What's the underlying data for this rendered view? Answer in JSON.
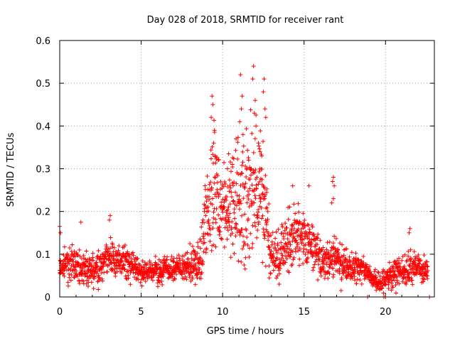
{
  "chart_data": {
    "type": "scatter",
    "title": "Day 028 of 2018, SRMTID for receiver rant",
    "xlabel": "GPS time / hours",
    "ylabel": "SRMTID / TECUs",
    "xlim": [
      0,
      23.0
    ],
    "ylim": [
      0,
      0.6
    ],
    "xticks": [
      0,
      5,
      10,
      15,
      20
    ],
    "xtick_labels": [
      "0",
      "5",
      "10",
      "15",
      "20"
    ],
    "yticks": [
      0,
      0.1,
      0.2,
      0.3,
      0.4,
      0.5,
      0.6
    ],
    "ytick_labels": [
      "0",
      "0.1",
      "0.2",
      "0.3",
      "0.4",
      "0.5",
      "0.6"
    ],
    "grid": true,
    "marker": "+",
    "color": "#ff0000",
    "profile": {
      "x": [
        0,
        1,
        2,
        3,
        4,
        5,
        6,
        7,
        8,
        8.6,
        9.0,
        9.5,
        10,
        10.5,
        11,
        11.5,
        12,
        12.5,
        13,
        13.5,
        14,
        14.5,
        15,
        15.5,
        16,
        16.5,
        17,
        17.5,
        18,
        18.5,
        19,
        19.5,
        20,
        20.5,
        21,
        21.5,
        22,
        22.6
      ],
      "y": [
        0.07,
        0.075,
        0.06,
        0.09,
        0.08,
        0.06,
        0.06,
        0.07,
        0.07,
        0.08,
        0.2,
        0.25,
        0.2,
        0.2,
        0.22,
        0.23,
        0.25,
        0.24,
        0.1,
        0.09,
        0.14,
        0.15,
        0.13,
        0.12,
        0.09,
        0.08,
        0.1,
        0.08,
        0.07,
        0.07,
        0.05,
        0.035,
        0.04,
        0.05,
        0.06,
        0.07,
        0.07,
        0.06
      ],
      "spread": [
        0.02,
        0.03,
        0.025,
        0.03,
        0.025,
        0.02,
        0.02,
        0.02,
        0.025,
        0.04,
        0.08,
        0.1,
        0.08,
        0.08,
        0.1,
        0.12,
        0.1,
        0.08,
        0.04,
        0.04,
        0.05,
        0.05,
        0.04,
        0.04,
        0.03,
        0.03,
        0.04,
        0.03,
        0.025,
        0.02,
        0.015,
        0.015,
        0.02,
        0.025,
        0.025,
        0.025,
        0.02,
        0.02
      ],
      "points_per_hour": 90
    },
    "peaks": [
      {
        "x": 9.35,
        "y": 0.47
      },
      {
        "x": 9.4,
        "y": 0.45
      },
      {
        "x": 9.3,
        "y": 0.42
      },
      {
        "x": 9.5,
        "y": 0.39
      },
      {
        "x": 9.45,
        "y": 0.36
      },
      {
        "x": 9.55,
        "y": 0.33
      },
      {
        "x": 11.1,
        "y": 0.52
      },
      {
        "x": 11.2,
        "y": 0.47
      },
      {
        "x": 11.15,
        "y": 0.44
      },
      {
        "x": 11.05,
        "y": 0.41
      },
      {
        "x": 11.25,
        "y": 0.38
      },
      {
        "x": 11.9,
        "y": 0.54
      },
      {
        "x": 11.85,
        "y": 0.51
      },
      {
        "x": 12.0,
        "y": 0.46
      },
      {
        "x": 11.95,
        "y": 0.43
      },
      {
        "x": 12.05,
        "y": 0.4
      },
      {
        "x": 12.55,
        "y": 0.51
      },
      {
        "x": 12.5,
        "y": 0.48
      },
      {
        "x": 12.6,
        "y": 0.44
      },
      {
        "x": 12.65,
        "y": 0.42
      },
      {
        "x": 12.2,
        "y": 0.36
      },
      {
        "x": 12.3,
        "y": 0.34
      },
      {
        "x": 12.4,
        "y": 0.33
      },
      {
        "x": 11.6,
        "y": 0.32
      },
      {
        "x": 10.6,
        "y": 0.31
      },
      {
        "x": 10.3,
        "y": 0.3
      },
      {
        "x": 16.8,
        "y": 0.28
      },
      {
        "x": 16.75,
        "y": 0.27
      },
      {
        "x": 16.85,
        "y": 0.26
      },
      {
        "x": 16.7,
        "y": 0.22
      },
      {
        "x": 16.8,
        "y": 0.23
      },
      {
        "x": 15.3,
        "y": 0.26
      },
      {
        "x": 14.3,
        "y": 0.26
      },
      {
        "x": 3.1,
        "y": 0.19
      },
      {
        "x": 3.05,
        "y": 0.18
      },
      {
        "x": 1.3,
        "y": 0.175
      },
      {
        "x": 0.0,
        "y": 0.165
      },
      {
        "x": 0.05,
        "y": 0.15
      },
      {
        "x": 21.5,
        "y": 0.16
      },
      {
        "x": 21.45,
        "y": 0.15
      },
      {
        "x": 18.9,
        "y": 0.0
      },
      {
        "x": 19.9,
        "y": 0.0
      },
      {
        "x": 20.0,
        "y": 0.0
      },
      {
        "x": 22.7,
        "y": 0.0
      }
    ]
  }
}
